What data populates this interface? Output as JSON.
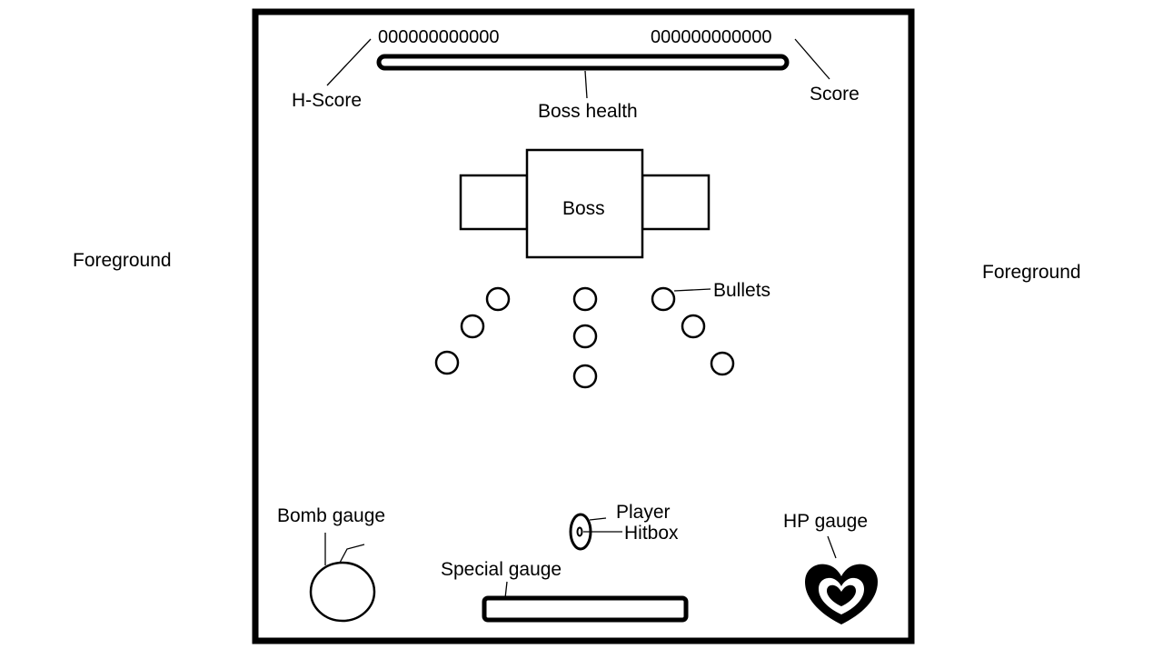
{
  "labels": {
    "foreground_left": "Foreground",
    "foreground_right": "Foreground",
    "h_score": "H-Score",
    "score": "Score",
    "boss_health": "Boss health",
    "boss": "Boss",
    "bullets": "Bullets",
    "bomb_gauge": "Bomb gauge",
    "special_gauge": "Special gauge",
    "player": "Player",
    "hitbox": "Hitbox",
    "hp_gauge": "HP gauge"
  },
  "hud": {
    "high_score_value": "000000000000",
    "score_value": "000000000000"
  }
}
